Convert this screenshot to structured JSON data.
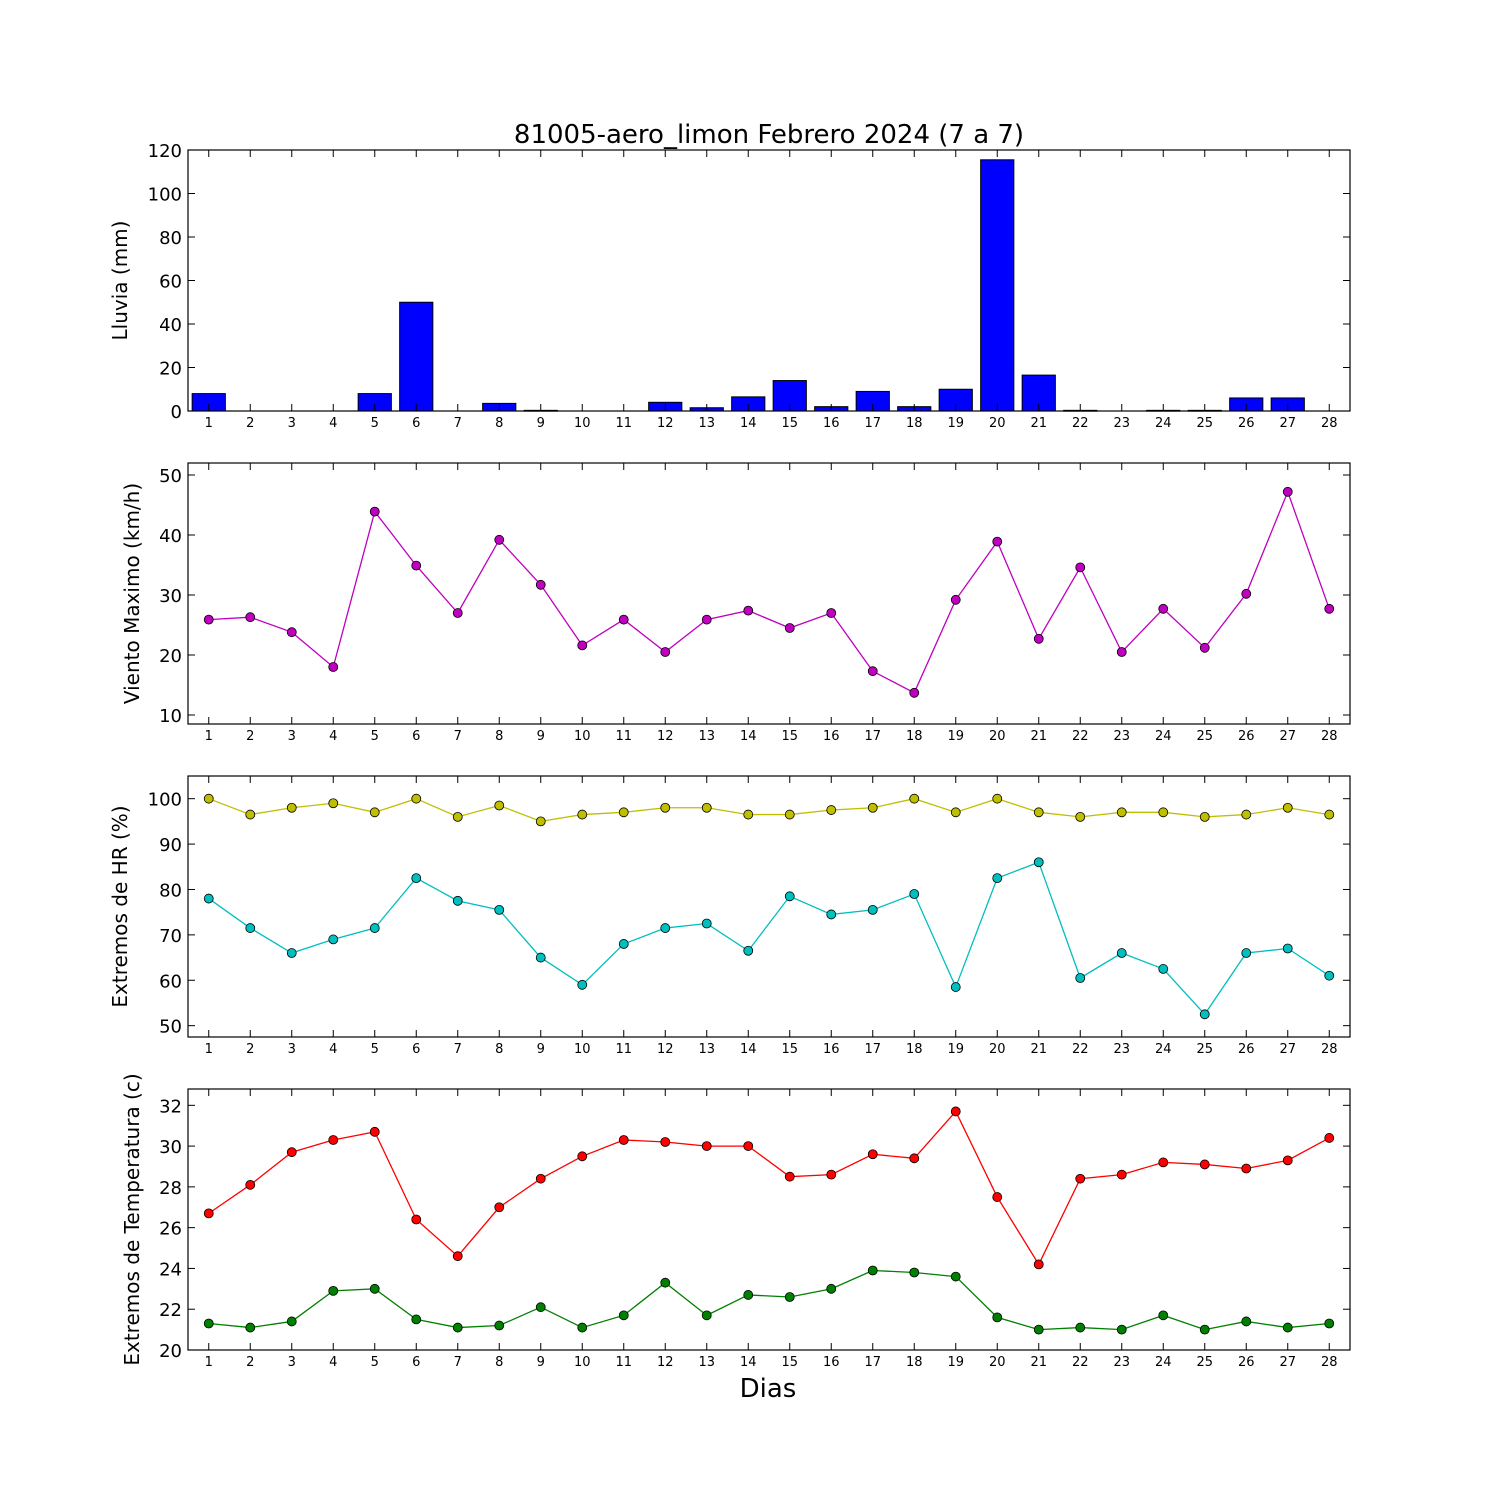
{
  "figure": {
    "title": "81005-aero_limon Febrero 2024  (7 a 7)",
    "xlabel": "Dias"
  },
  "chart_data": [
    {
      "type": "bar",
      "ylabel": "Lluvia (mm)",
      "categories": [
        1,
        2,
        3,
        4,
        5,
        6,
        7,
        8,
        9,
        10,
        11,
        12,
        13,
        14,
        15,
        16,
        17,
        18,
        19,
        20,
        21,
        22,
        23,
        24,
        25,
        26,
        27,
        28
      ],
      "ylim": [
        0,
        120
      ],
      "yticks": [
        0,
        20,
        40,
        60,
        80,
        100,
        120
      ],
      "grid": false,
      "series": [
        {
          "color": "#0000ff",
          "values": [
            8.0,
            0,
            0,
            0,
            8.0,
            50.0,
            0,
            3.5,
            0.3,
            0,
            0,
            4.0,
            1.5,
            6.5,
            14.0,
            2.0,
            9.0,
            2.0,
            10.0,
            115.5,
            16.5,
            0.3,
            0,
            0.3,
            0.3,
            6.0,
            6.0,
            0
          ]
        }
      ]
    },
    {
      "type": "line",
      "ylabel": "Viento Maximo (km/h)",
      "x": [
        1,
        2,
        3,
        4,
        5,
        6,
        7,
        8,
        9,
        10,
        11,
        12,
        13,
        14,
        15,
        16,
        17,
        18,
        19,
        20,
        21,
        22,
        23,
        24,
        25,
        26,
        27,
        28
      ],
      "ylim": [
        8.5,
        52
      ],
      "yticks": [
        10,
        20,
        30,
        40,
        50
      ],
      "grid": false,
      "series": [
        {
          "color": "#bf00bf",
          "values": [
            25.9,
            26.3,
            23.8,
            18.0,
            43.9,
            34.9,
            27.0,
            39.2,
            31.7,
            21.6,
            25.9,
            20.5,
            25.9,
            27.4,
            24.5,
            27.0,
            17.3,
            13.7,
            29.2,
            38.9,
            22.7,
            34.6,
            20.5,
            27.7,
            21.2,
            30.2,
            47.2,
            27.7
          ]
        }
      ]
    },
    {
      "type": "line",
      "ylabel": "Extremos de HR (%)",
      "x": [
        1,
        2,
        3,
        4,
        5,
        6,
        7,
        8,
        9,
        10,
        11,
        12,
        13,
        14,
        15,
        16,
        17,
        18,
        19,
        20,
        21,
        22,
        23,
        24,
        25,
        26,
        27,
        28
      ],
      "ylim": [
        47.5,
        105
      ],
      "yticks": [
        50,
        60,
        70,
        80,
        90,
        100
      ],
      "grid": false,
      "series": [
        {
          "color": "#bfbf00",
          "values": [
            100,
            96.5,
            98,
            99,
            97,
            100,
            96,
            98.5,
            95,
            96.5,
            97,
            98,
            98,
            96.5,
            96.5,
            97.5,
            98,
            100,
            97,
            100,
            97,
            96,
            97,
            97,
            96,
            96.5,
            98,
            96.5
          ]
        },
        {
          "color": "#00bfbf",
          "values": [
            78,
            71.5,
            66,
            69,
            71.5,
            82.5,
            77.5,
            75.5,
            65,
            59,
            68,
            71.5,
            72.5,
            66.5,
            78.5,
            74.5,
            75.5,
            79,
            58.5,
            82.5,
            86,
            60.5,
            66,
            62.5,
            52.5,
            66,
            67,
            61
          ]
        }
      ]
    },
    {
      "type": "line",
      "ylabel": "Extremos de Temperatura (c)",
      "x": [
        1,
        2,
        3,
        4,
        5,
        6,
        7,
        8,
        9,
        10,
        11,
        12,
        13,
        14,
        15,
        16,
        17,
        18,
        19,
        20,
        21,
        22,
        23,
        24,
        25,
        26,
        27,
        28
      ],
      "ylim": [
        20,
        32.8
      ],
      "yticks": [
        20,
        22,
        24,
        26,
        28,
        30,
        32
      ],
      "grid": false,
      "series": [
        {
          "color": "#ff0000",
          "values": [
            26.7,
            28.1,
            29.7,
            30.3,
            30.7,
            26.4,
            24.6,
            27.0,
            28.4,
            29.5,
            30.3,
            30.2,
            30.0,
            30.0,
            28.5,
            28.6,
            29.6,
            29.4,
            31.7,
            27.5,
            24.2,
            28.4,
            28.6,
            29.2,
            29.1,
            28.9,
            29.3,
            30.4
          ]
        },
        {
          "color": "#008000",
          "values": [
            21.3,
            21.1,
            21.4,
            22.9,
            23.0,
            21.5,
            21.1,
            21.2,
            22.1,
            21.1,
            21.7,
            23.3,
            21.7,
            22.7,
            22.6,
            23.0,
            23.9,
            23.8,
            23.6,
            21.6,
            21.0,
            21.1,
            21.0,
            21.7,
            21.0,
            21.4,
            21.1,
            21.3
          ]
        }
      ]
    }
  ]
}
